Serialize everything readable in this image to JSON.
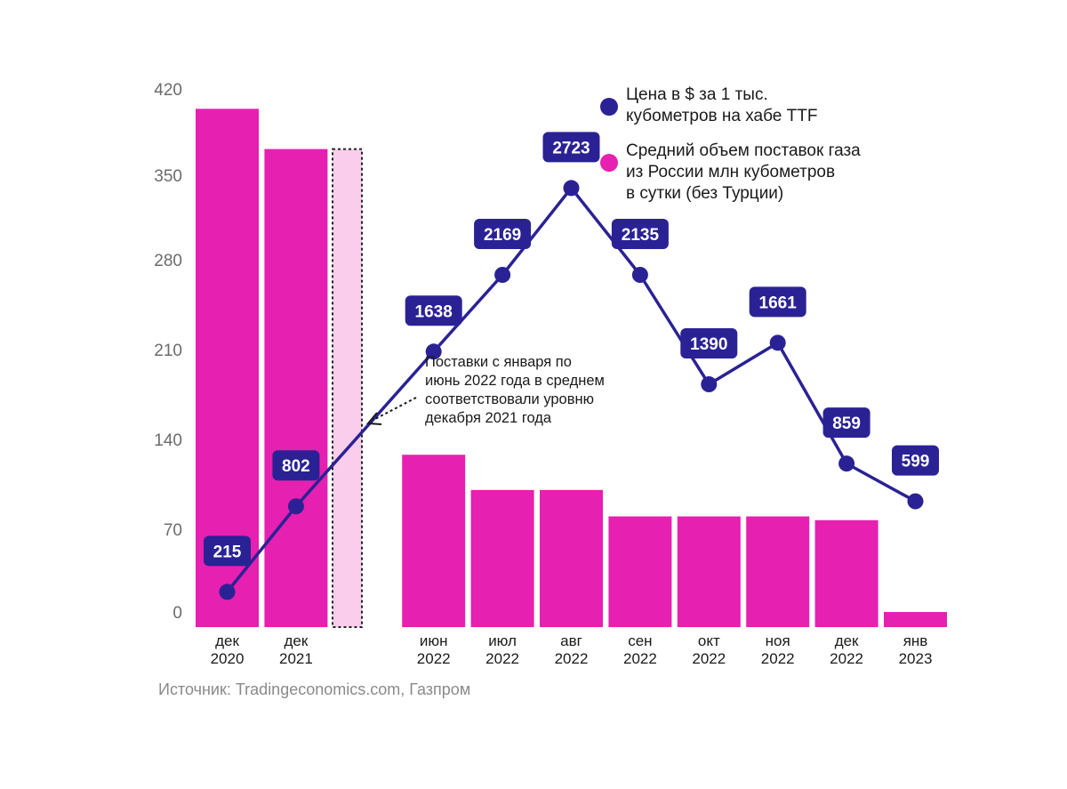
{
  "chart_data": {
    "type": "bar+line",
    "categories": [
      {
        "month": "дек",
        "year": "2020"
      },
      {
        "month": "дек",
        "year": "2021"
      },
      {
        "month": "",
        "year": ""
      },
      {
        "month": "июн",
        "year": "2022"
      },
      {
        "month": "июл",
        "year": "2022"
      },
      {
        "month": "авг",
        "year": "2022"
      },
      {
        "month": "сен",
        "year": "2022"
      },
      {
        "month": "окт",
        "year": "2022"
      },
      {
        "month": "ноя",
        "year": "2022"
      },
      {
        "month": "дек",
        "year": "2022"
      },
      {
        "month": "янв",
        "year": "2023"
      }
    ],
    "series": [
      {
        "name": "Средний объем поставок газа из России млн кубометров в сутки (без Турции)",
        "kind": "bar",
        "color": "#e620b0",
        "values": [
          412,
          380,
          380,
          137,
          109,
          109,
          88,
          88,
          88,
          85,
          12
        ],
        "highlighted_index": 2,
        "highlight_color": "#f9cdeb"
      },
      {
        "name": "Цена в $ за 1 тыс. кубометров на хабе TTF",
        "kind": "line",
        "color": "#2a2294",
        "indices": [
          0,
          1,
          3,
          4,
          5,
          6,
          7,
          8,
          9,
          10
        ],
        "labels": [
          "215",
          "802",
          "1638",
          "2169",
          "2723",
          "2135",
          "1390",
          "1661",
          "859",
          "599"
        ],
        "values_on_left_axis": [
          28,
          96,
          219,
          280,
          349,
          280,
          193,
          226,
          130,
          100
        ]
      }
    ],
    "ylim": [
      0,
      420
    ],
    "yticks": [
      "0",
      "70",
      "140",
      "210",
      "280",
      "350",
      "420"
    ],
    "legend": [
      {
        "lines": [
          "Цена в $ за 1 тыс.",
          "кубометров на хабе TTF"
        ],
        "color": "#2a2294"
      },
      {
        "lines": [
          "Средний объем поставок газа",
          "из России млн кубометров",
          "в сутки (без Турции)"
        ],
        "color": "#e620b0"
      }
    ],
    "legend_position": "top-right",
    "annotation": [
      "Поставки с января по",
      "июнь 2022 года в среднем",
      "соответствовали уровню",
      "декабря 2021 года"
    ]
  },
  "source": "Источник: Tradingeconomics.com, Газпром"
}
